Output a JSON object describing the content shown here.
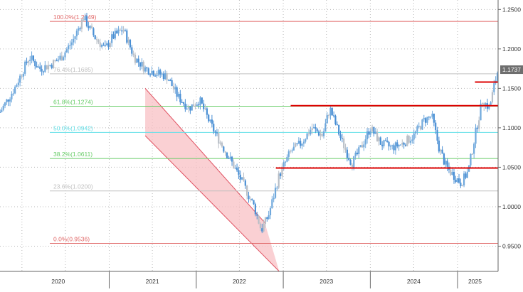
{
  "chart_data": {
    "type": "candlestick",
    "title": "",
    "xlabel": "",
    "ylabel": "",
    "ylim": [
      0.918,
      1.262
    ],
    "y_ticks": [
      "0.9500",
      "1.0000",
      "1.0500",
      "1.1000",
      "1.1500",
      "1.2000",
      "1.2500"
    ],
    "y_tick_values": [
      0.95,
      1.0,
      1.05,
      1.1,
      1.15,
      1.2,
      1.25
    ],
    "x_labels": [
      "2020",
      "2021",
      "2022",
      "2023",
      "2024",
      "2025"
    ],
    "x_label_dates": [
      "2020-06-01",
      "2021-07-01",
      "2022-07-01",
      "2023-07-01",
      "2024-07-01",
      "2025-03-15"
    ],
    "x_separators": [
      "2021-01-01",
      "2022-01-01",
      "2023-01-01",
      "2024-01-01",
      "2025-01-01"
    ],
    "x_range": [
      "2019-10-01",
      "2025-06-20"
    ],
    "grid": true,
    "last_price": {
      "value": 1.1737,
      "label": "1.1737"
    },
    "colors": {
      "up": "#6fa8dc",
      "down": "#4a8fd4",
      "neutral": "#b8bec6",
      "fib_red": "#e06666",
      "fib_green": "#66cc66",
      "fib_cyan": "#66e0e8",
      "fib_grey": "#c0c0c0",
      "resistance": "#dd0000",
      "channel_fill": "#f8c0c4",
      "channel_edge": "#e05060"
    },
    "fib_levels": [
      {
        "label": "100.0%(1.2349)",
        "value": 1.2349,
        "color": "#e06666"
      },
      {
        "label": "76.4%(1.1685)",
        "value": 1.1685,
        "color": "#c0c0c0"
      },
      {
        "label": "61.8%(1.1274)",
        "value": 1.1274,
        "color": "#66cc66"
      },
      {
        "label": "50.0%(1.0942)",
        "value": 1.0942,
        "color": "#66e0e8"
      },
      {
        "label": "38.2%(1.0611)",
        "value": 1.0611,
        "color": "#66cc66"
      },
      {
        "label": "23.6%(1.0200)",
        "value": 1.02,
        "color": "#c0c0c0"
      },
      {
        "label": "0.0%(0.9536)",
        "value": 0.9536,
        "color": "#e06666"
      }
    ],
    "horizontal_levels": [
      {
        "value": 1.128,
        "from": "2023-02-01",
        "to": "2025-06-20"
      },
      {
        "value": 1.049,
        "from": "2022-12-01",
        "to": "2025-06-20"
      },
      {
        "value": 1.158,
        "from": "2025-03-15",
        "to": "2025-06-20"
      }
    ],
    "channel": {
      "upper": [
        [
          "2021-06-01",
          1.15
        ],
        [
          "2022-10-15",
          0.98
        ]
      ],
      "lower": [
        [
          "2021-06-01",
          1.09
        ],
        [
          "2022-12-15",
          0.918
        ]
      ]
    },
    "series": [
      {
        "close_path": [
          [
            "2019-10-01",
            1.12
          ],
          [
            "2019-12-01",
            1.15
          ],
          [
            "2020-02-01",
            1.19
          ],
          [
            "2020-03-15",
            1.175
          ],
          [
            "2020-05-01",
            1.18
          ],
          [
            "2020-06-15",
            1.19
          ],
          [
            "2020-08-01",
            1.21
          ],
          [
            "2020-09-15",
            1.24
          ],
          [
            "2020-11-01",
            1.215
          ],
          [
            "2020-12-15",
            1.2
          ],
          [
            "2021-01-15",
            1.215
          ],
          [
            "2021-03-01",
            1.225
          ],
          [
            "2021-04-15",
            1.19
          ],
          [
            "2021-06-01",
            1.175
          ],
          [
            "2021-07-15",
            1.17
          ],
          [
            "2021-09-01",
            1.165
          ],
          [
            "2021-10-15",
            1.14
          ],
          [
            "2021-12-01",
            1.125
          ],
          [
            "2022-01-15",
            1.135
          ],
          [
            "2022-03-01",
            1.105
          ],
          [
            "2022-04-15",
            1.08
          ],
          [
            "2022-06-01",
            1.055
          ],
          [
            "2022-07-15",
            1.03
          ],
          [
            "2022-09-01",
            1.0
          ],
          [
            "2022-10-01",
            0.97
          ],
          [
            "2022-11-01",
            0.99
          ],
          [
            "2022-12-15",
            1.04
          ],
          [
            "2023-02-01",
            1.07
          ],
          [
            "2023-03-15",
            1.08
          ],
          [
            "2023-05-01",
            1.1
          ],
          [
            "2023-06-15",
            1.09
          ],
          [
            "2023-07-15",
            1.125
          ],
          [
            "2023-09-01",
            1.085
          ],
          [
            "2023-10-15",
            1.055
          ],
          [
            "2023-11-15",
            1.07
          ],
          [
            "2024-01-01",
            1.1
          ],
          [
            "2024-02-15",
            1.08
          ],
          [
            "2024-04-01",
            1.075
          ],
          [
            "2024-05-15",
            1.08
          ],
          [
            "2024-07-01",
            1.09
          ],
          [
            "2024-08-15",
            1.11
          ],
          [
            "2024-09-15",
            1.115
          ],
          [
            "2024-10-15",
            1.075
          ],
          [
            "2024-11-15",
            1.05
          ],
          [
            "2024-12-15",
            1.04
          ],
          [
            "2025-01-15",
            1.03
          ],
          [
            "2025-02-15",
            1.045
          ],
          [
            "2025-03-15",
            1.09
          ],
          [
            "2025-04-15",
            1.135
          ],
          [
            "2025-05-15",
            1.125
          ],
          [
            "2025-06-01",
            1.15
          ],
          [
            "2025-06-20",
            1.174
          ]
        ]
      }
    ]
  }
}
